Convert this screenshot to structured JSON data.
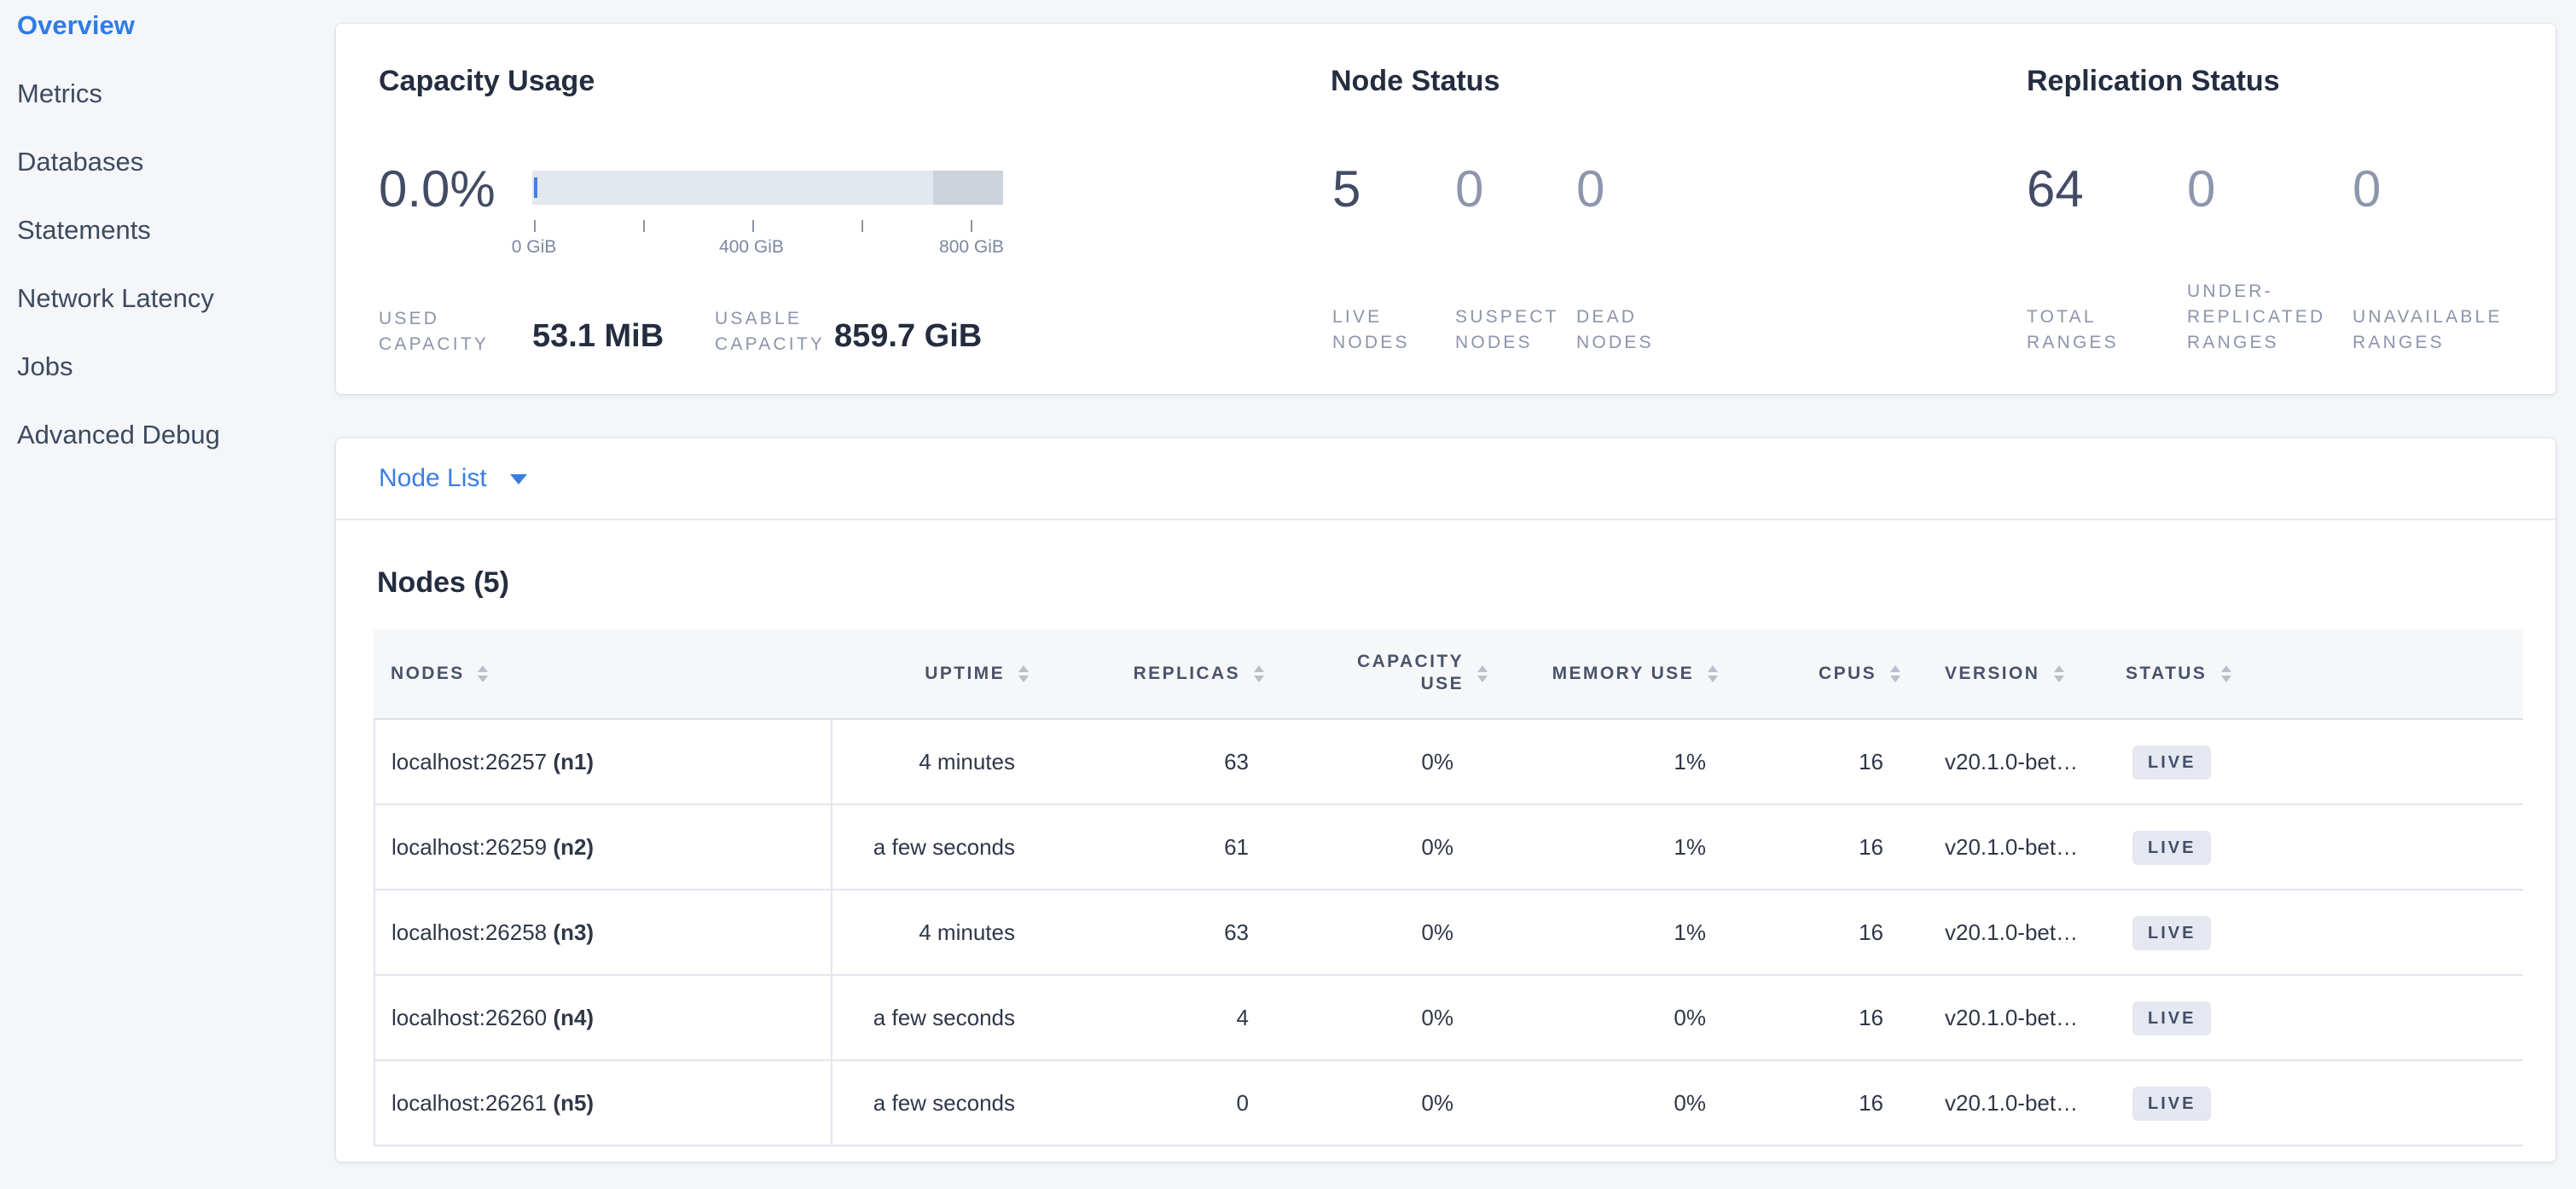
{
  "colors": {
    "accent_blue": "#2e7ce8",
    "link_blue": "#3b7de4",
    "bar_track": "#e3e7ee",
    "bar_overflow": "#cdd3dc",
    "bar_used": "#4080f0",
    "badge_bg": "#e5e8f0",
    "badge_text": "#424e68"
  },
  "sidebar": {
    "items": [
      {
        "label": "Overview",
        "active": true
      },
      {
        "label": "Metrics",
        "active": false
      },
      {
        "label": "Databases",
        "active": false
      },
      {
        "label": "Statements",
        "active": false
      },
      {
        "label": "Network Latency",
        "active": false
      },
      {
        "label": "Jobs",
        "active": false
      },
      {
        "label": "Advanced Debug",
        "active": false
      }
    ]
  },
  "capacity": {
    "title": "Capacity Usage",
    "percent": "0.0%",
    "axis": {
      "tick_labels": [
        "0 GiB",
        "400 GiB",
        "800 GiB"
      ]
    },
    "stats": [
      {
        "label": "USED CAPACITY",
        "value": "53.1 MiB"
      },
      {
        "label": "USABLE CAPACITY",
        "value": "859.7 GiB"
      }
    ]
  },
  "node_status": {
    "title": "Node Status",
    "metrics": [
      {
        "value": "5",
        "label": "LIVE NODES",
        "emphasis": true
      },
      {
        "value": "0",
        "label": "SUSPECT NODES",
        "emphasis": false
      },
      {
        "value": "0",
        "label": "DEAD NODES",
        "emphasis": false
      }
    ]
  },
  "replication": {
    "title": "Replication Status",
    "metrics": [
      {
        "value": "64",
        "label": "TOTAL RANGES",
        "emphasis": true
      },
      {
        "value": "0",
        "label": "UNDER-REPLICATED RANGES",
        "emphasis": false
      },
      {
        "value": "0",
        "label": "UNAVAILABLE RANGES",
        "emphasis": false
      }
    ]
  },
  "node_list": {
    "label": "Node List"
  },
  "nodes_table": {
    "title": "Nodes (5)",
    "columns": [
      "NODES",
      "UPTIME",
      "REPLICAS",
      "CAPACITY USE",
      "MEMORY USE",
      "CPUS",
      "VERSION",
      "STATUS"
    ],
    "rows": [
      {
        "address": "localhost:26257",
        "id": "(n1)",
        "uptime": "4 minutes",
        "replicas": "63",
        "capacity_use": "0%",
        "memory_use": "1%",
        "cpus": "16",
        "version": "v20.1.0-bet…",
        "status": "LIVE"
      },
      {
        "address": "localhost:26259",
        "id": "(n2)",
        "uptime": "a few seconds",
        "replicas": "61",
        "capacity_use": "0%",
        "memory_use": "1%",
        "cpus": "16",
        "version": "v20.1.0-bet…",
        "status": "LIVE"
      },
      {
        "address": "localhost:26258",
        "id": "(n3)",
        "uptime": "4 minutes",
        "replicas": "63",
        "capacity_use": "0%",
        "memory_use": "1%",
        "cpus": "16",
        "version": "v20.1.0-bet…",
        "status": "LIVE"
      },
      {
        "address": "localhost:26260",
        "id": "(n4)",
        "uptime": "a few seconds",
        "replicas": "4",
        "capacity_use": "0%",
        "memory_use": "0%",
        "cpus": "16",
        "version": "v20.1.0-bet…",
        "status": "LIVE"
      },
      {
        "address": "localhost:26261",
        "id": "(n5)",
        "uptime": "a few seconds",
        "replicas": "0",
        "capacity_use": "0%",
        "memory_use": "0%",
        "cpus": "16",
        "version": "v20.1.0-bet…",
        "status": "LIVE"
      }
    ]
  }
}
